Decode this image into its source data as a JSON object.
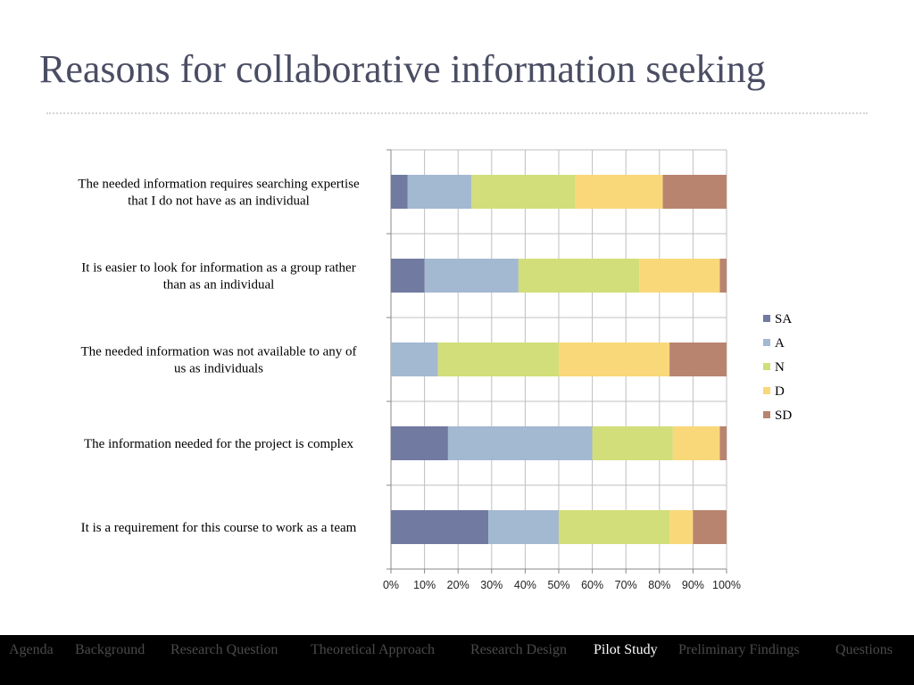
{
  "slide": {
    "title": "Reasons for collaborative information seeking"
  },
  "colors": {
    "title": "#4a4d63",
    "grid": "#bfbfbf",
    "nav_bg": "#000000",
    "nav_inactive": "#4a4a4a",
    "nav_active": "#ffffff"
  },
  "nav": {
    "items": [
      {
        "label": "Agenda",
        "active": false
      },
      {
        "label": "Background",
        "active": false
      },
      {
        "label": "Research  Question",
        "active": false
      },
      {
        "label": "Theoretical  Approach",
        "active": false
      },
      {
        "label": "Research Design",
        "active": false
      },
      {
        "label": "Pilot Study",
        "active": true
      },
      {
        "label": "Preliminary Findings",
        "active": false
      },
      {
        "label": "Questions",
        "active": false
      }
    ]
  },
  "chart_data": {
    "type": "bar",
    "orientation": "horizontal",
    "stacked": "percent",
    "title": "",
    "xlabel": "",
    "ylabel": "",
    "xlim": [
      0,
      100
    ],
    "x_ticks": [
      "0%",
      "10%",
      "20%",
      "30%",
      "40%",
      "50%",
      "60%",
      "70%",
      "80%",
      "90%",
      "100%"
    ],
    "grid": true,
    "legend_position": "right",
    "categories": [
      [
        "The needed information requires searching expertise",
        "that I do not have as an individual"
      ],
      [
        "It is easier to look for information as a group rather",
        "than as an individual"
      ],
      [
        "The needed information was not available to any of",
        "us as individuals"
      ],
      [
        "The information needed for the project is complex"
      ],
      [
        "It is a requirement for this course to work as a team"
      ]
    ],
    "series": [
      {
        "name": "SA",
        "color": "#717aa0",
        "values": [
          5,
          10,
          0,
          17,
          29
        ]
      },
      {
        "name": "A",
        "color": "#a3b8d1",
        "values": [
          19,
          28,
          14,
          43,
          21
        ]
      },
      {
        "name": "N",
        "color": "#d2de79",
        "values": [
          31,
          36,
          36,
          24,
          33
        ]
      },
      {
        "name": "D",
        "color": "#f9d879",
        "values": [
          26,
          24,
          33,
          14,
          7
        ]
      },
      {
        "name": "SD",
        "color": "#b9846f",
        "values": [
          19,
          2,
          17,
          2,
          10
        ]
      }
    ]
  }
}
